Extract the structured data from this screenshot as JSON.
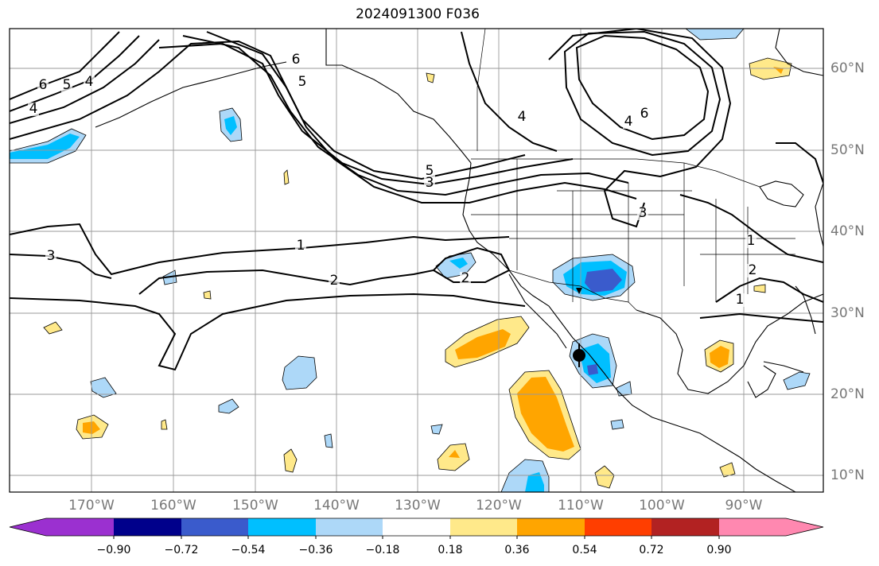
{
  "title": "2024091300 F036",
  "map": {
    "lon_labels": [
      "170°W",
      "160°W",
      "150°W",
      "140°W",
      "130°W",
      "120°W",
      "110°W",
      "100°W",
      "90°W"
    ],
    "lat_labels": [
      "60°N",
      "50°N",
      "40°N",
      "30°N",
      "20°N",
      "10°N"
    ],
    "contour_labels": [
      "6",
      "5",
      "4",
      "4",
      "5",
      "6",
      "5",
      "3",
      "1",
      "2",
      "3",
      "2",
      "4",
      "6",
      "4",
      "3",
      "1",
      "2",
      "1"
    ],
    "colors": {
      "purple": "#9b30d0",
      "navy": "#00008b",
      "royal": "#3a5bcc",
      "deepsky": "#00bfff",
      "lightblue": "#add8f8",
      "white": "#ffffff",
      "lightyellow": "#ffe98a",
      "orange": "#ffa500",
      "orangered": "#ff3e00",
      "firebrick": "#b22222",
      "pink": "#ff88b0"
    }
  },
  "colorbar": {
    "tick_labels": [
      "−0.90",
      "−0.72",
      "−0.54",
      "−0.36",
      "−0.18",
      "0.18",
      "0.36",
      "0.54",
      "0.72",
      "0.90"
    ],
    "bins": [
      "purple",
      "navy",
      "royal",
      "deepsky",
      "lightblue",
      "white",
      "lightyellow",
      "orange",
      "orangered",
      "firebrick",
      "pink"
    ]
  }
}
